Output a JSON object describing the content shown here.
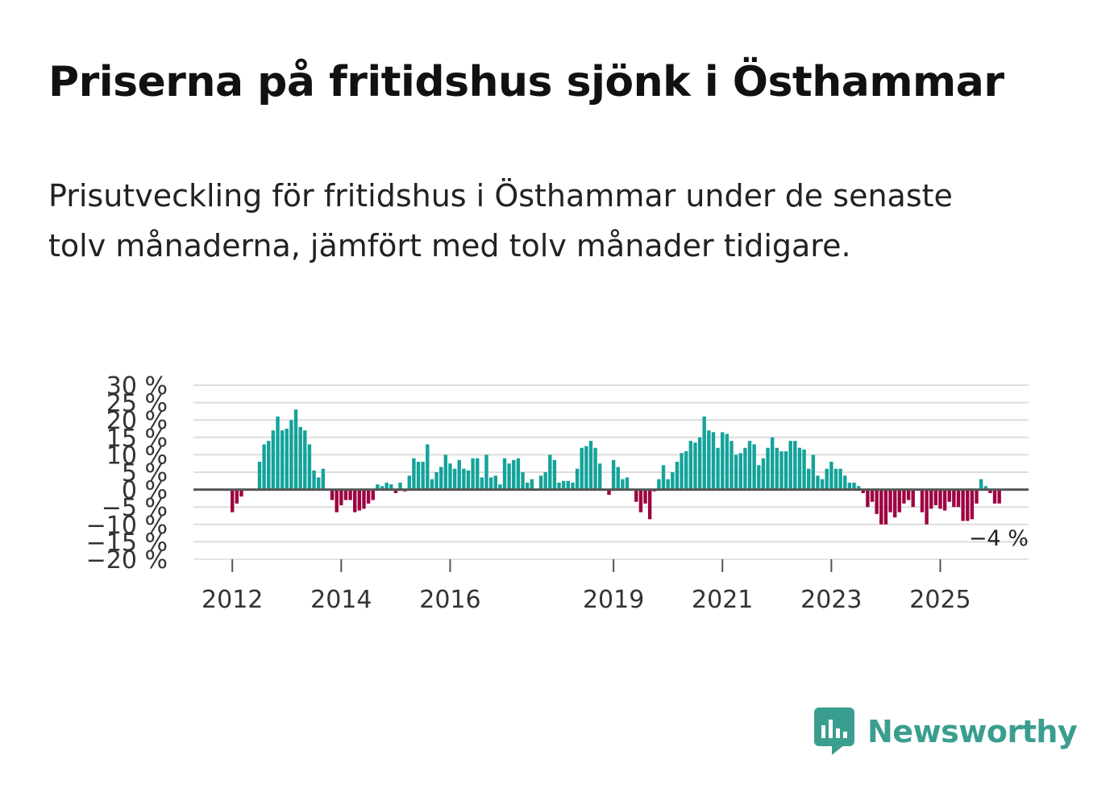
{
  "header": {
    "title": "Priserna på fritidshus sjönk i Östhammar",
    "subtitle": "Prisutveckling för fritidshus i Östhammar under de senaste tolv månaderna, jämfört med tolv månader tidigare."
  },
  "brand": {
    "name": "Newsworthy",
    "color": "#3a9e8f"
  },
  "colors": {
    "positive": "#13a39a",
    "negative": "#9e0142",
    "zero_line": "#555555",
    "grid": "#dddddd"
  },
  "chart_data": {
    "type": "bar",
    "title": "Priserna på fritidshus sjönk i Östhammar",
    "xlabel": "",
    "ylabel": "",
    "ylim": [
      -20,
      30
    ],
    "y_ticks": [
      {
        "value": 30,
        "label": "30 %"
      },
      {
        "value": 25,
        "label": "25 %"
      },
      {
        "value": 20,
        "label": "20 %"
      },
      {
        "value": 15,
        "label": "15 %"
      },
      {
        "value": 10,
        "label": "10 %"
      },
      {
        "value": 5,
        "label": "5 %"
      },
      {
        "value": 0,
        "label": "0 %"
      },
      {
        "value": -5,
        "label": "−5 %"
      },
      {
        "value": -10,
        "label": "−10 %"
      },
      {
        "value": -15,
        "label": "−15 %"
      },
      {
        "value": -20,
        "label": "−20 %"
      }
    ],
    "x_ticks": [
      {
        "year": 2012,
        "label": "2012"
      },
      {
        "year": 2014,
        "label": "2014"
      },
      {
        "year": 2016,
        "label": "2016"
      },
      {
        "year": 2019,
        "label": "2019"
      },
      {
        "year": 2021,
        "label": "2021"
      },
      {
        "year": 2023,
        "label": "2023"
      },
      {
        "year": 2025,
        "label": "2025"
      }
    ],
    "start": {
      "year": 2012,
      "month": 1
    },
    "values": [
      -6.5,
      -4,
      -2,
      0,
      0,
      0,
      8,
      13,
      14,
      17,
      21,
      17,
      17.5,
      20,
      23,
      18,
      17,
      13,
      5.5,
      3.5,
      6,
      0,
      -3,
      -6.5,
      -4.5,
      -3,
      -3,
      -6.5,
      -6,
      -5.5,
      -4,
      -3,
      1.5,
      1,
      2,
      1.5,
      -1,
      2,
      -0.5,
      4,
      9,
      8,
      8,
      13,
      3,
      5,
      6.5,
      10,
      7.5,
      6,
      8.5,
      6,
      5.5,
      9,
      9,
      3.5,
      10,
      3.5,
      4,
      1.5,
      9,
      7.5,
      8.5,
      9,
      5,
      2,
      3,
      0,
      4,
      5,
      10,
      8.5,
      2,
      2.5,
      2.5,
      2,
      6,
      12,
      12.5,
      14,
      12,
      7.5,
      0,
      -1.5,
      8.5,
      6.5,
      3,
      3.5,
      0,
      -3.5,
      -6.5,
      -4,
      -8.5,
      -0.5,
      3,
      7,
      3,
      5,
      8,
      10.5,
      11,
      14,
      13.5,
      15,
      21,
      17,
      16.5,
      12,
      16.5,
      16,
      14,
      10,
      10.5,
      12,
      14,
      13,
      7,
      9,
      12,
      15,
      12,
      11,
      11,
      14,
      14,
      12,
      11.5,
      6,
      10,
      4,
      3,
      6,
      8,
      6,
      6,
      4,
      2,
      2,
      1,
      -1,
      -5,
      -3.5,
      -7,
      -10,
      -10,
      -6.5,
      -8,
      -6.5,
      -4,
      -3,
      -5,
      0,
      -6.5,
      -10,
      -5.5,
      -4.5,
      -5.5,
      -6,
      -3.5,
      -5,
      -5,
      -9,
      -9,
      -8.5,
      -4,
      3,
      1,
      -1,
      -4,
      -4
    ],
    "annotation": {
      "label": "−4 %",
      "value": -4,
      "period": "2026-02"
    },
    "legend": "none",
    "grid": true
  }
}
